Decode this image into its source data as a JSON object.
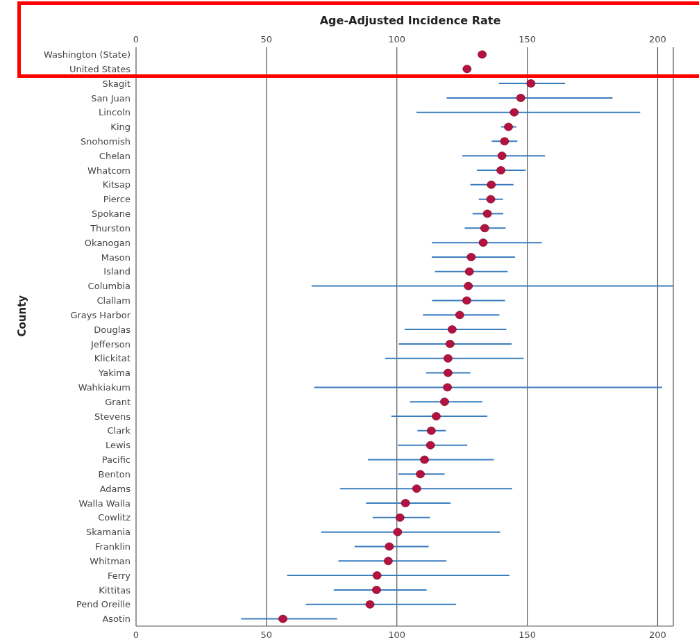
{
  "chart_data": {
    "type": "scatter",
    "title": "Age-Adjusted Incidence Rate",
    "ylabel": "County",
    "categories": [
      "Washington (State)",
      "United States",
      "Skagit",
      "San Juan",
      "Lincoln",
      "King",
      "Snohomish",
      "Chelan",
      "Whatcom",
      "Kitsap",
      "Pierce",
      "Spokane",
      "Thurston",
      "Okanogan",
      "Mason",
      "Island",
      "Columbia",
      "Clallam",
      "Grays Harbor",
      "Douglas",
      "Jefferson",
      "Klickitat",
      "Yakima",
      "Wahkiakum",
      "Grant",
      "Stevens",
      "Clark",
      "Lewis",
      "Pacific",
      "Benton",
      "Adams",
      "Walla Walla",
      "Cowlitz",
      "Skamania",
      "Franklin",
      "Whitman",
      "Ferry",
      "Kittitas",
      "Pend Oreille",
      "Asotin"
    ],
    "orientation": "horizontal",
    "series": [
      {
        "color": "#b5123f",
        "values": [
          132.7,
          126.9,
          151.4,
          147.5,
          145,
          142.8,
          141.3,
          140.3,
          139.9,
          136.2,
          136,
          134.7,
          133.7,
          133.1,
          128.5,
          127.8,
          127.4,
          126.8,
          124.1,
          121.2,
          120.4,
          119.6,
          119.6,
          119.4,
          118.3,
          115.1,
          113.2,
          112.9,
          110.6,
          109,
          107.6,
          103.3,
          101.2,
          100.3,
          97.1,
          96.7,
          92.4,
          92.2,
          89.7,
          56.3
        ],
        "errors": [
          null,
          null,
          [
            139.1,
            164.5
          ],
          [
            119.1,
            182.7
          ],
          [
            107.5,
            193.3
          ],
          [
            140,
            145.8
          ],
          [
            136.4,
            146.2
          ],
          [
            125.1,
            156.8
          ],
          [
            130.7,
            149.4
          ],
          [
            128.2,
            144.7
          ],
          [
            131.4,
            140.7
          ],
          [
            129,
            140.8
          ],
          [
            126,
            141.7
          ],
          [
            113.4,
            155.6
          ],
          [
            113.4,
            145.3
          ],
          [
            114.6,
            142.5
          ],
          [
            67.3,
            206
          ],
          [
            113.5,
            141.5
          ],
          [
            110,
            139.3
          ],
          [
            103,
            142
          ],
          [
            100.7,
            144
          ],
          [
            95.5,
            148.6
          ],
          [
            111.2,
            128.2
          ],
          [
            68.3,
            201.7
          ],
          [
            105,
            132.8
          ],
          [
            97.9,
            134.7
          ],
          [
            107.9,
            118.8
          ],
          [
            100.3,
            127
          ],
          [
            88.9,
            137.2
          ],
          [
            100.6,
            118.3
          ],
          [
            78.2,
            144.2
          ],
          [
            88.2,
            120.6
          ],
          [
            90.7,
            112.7
          ],
          [
            71,
            139.6
          ],
          [
            83.8,
            112.2
          ],
          [
            77.6,
            119
          ],
          [
            57.9,
            143.2
          ],
          [
            75.8,
            111.4
          ],
          [
            65.1,
            122.7
          ],
          [
            40.3,
            77.1
          ]
        ]
      }
    ],
    "xlim": [
      0,
      206
    ],
    "xticks": [
      0,
      50,
      100,
      150,
      200
    ],
    "x2lim": [
      0,
      206
    ],
    "x2ticks": [
      0,
      50,
      100,
      150,
      200
    ],
    "grid": "x",
    "marker": "circle"
  }
}
